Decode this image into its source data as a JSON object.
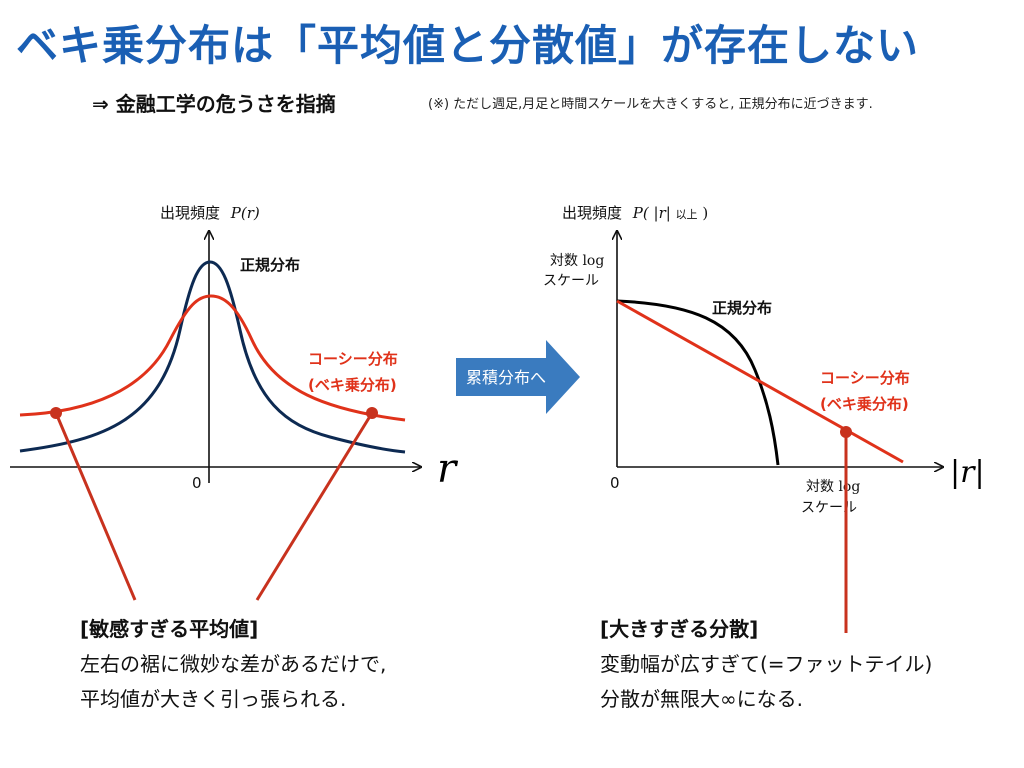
{
  "title": "ベキ乗分布は「平均値と分散値」が存在しない",
  "subtitle": "⇒ 金融工学の危うさを指摘",
  "note": "(※) ただし週足,月足と時間スケールを大きくすると, 正規分布に近づきます.",
  "left_chart": {
    "ylabel_text": "出現頻度",
    "ylabel_var": "P(r)",
    "xlabel": "r",
    "origin": "0",
    "normal_label": "正規分布",
    "cauchy_label_1": "コーシー分布",
    "cauchy_label_2": "(ベキ乗分布)"
  },
  "right_chart": {
    "ylabel_text": "出現頻度",
    "ylabel_var": "P( |r| ",
    "ylabel_suffix": "以上",
    "ylabel_close": ")",
    "y_scale_1": "対数 log",
    "y_scale_2": "スケール",
    "x_scale_1": "対数 log",
    "x_scale_2": "スケール",
    "xlabel": "|r|",
    "origin": "0",
    "normal_label": "正規分布",
    "cauchy_label_1": "コーシー分布",
    "cauchy_label_2": "(ベキ乗分布)"
  },
  "arrow_label": "累積分布へ",
  "caption_left": {
    "head": "[敏感すぎる平均値]",
    "line1": "左右の裾に微妙な差があるだけで,",
    "line2": "平均値が大きく引っ張られる."
  },
  "caption_right": {
    "head": "[大きすぎる分散]",
    "line1": "変動幅が広すぎて(=ファットテイル)",
    "line2": "分散が無限大∞になる."
  },
  "colors": {
    "title": "#1a5fb4",
    "normal_curve": "#0d2a52",
    "cauchy_curve": "#e0321a",
    "pointer": "#c8321e",
    "arrow": "#3a7bbf",
    "black_curve": "#000000"
  },
  "chart_data": [
    {
      "type": "line",
      "series": [
        {
          "name": "正規分布",
          "curve": "bell-narrow"
        },
        {
          "name": "コーシー分布 (ベキ乗分布)",
          "curve": "bell-heavy-tail"
        }
      ],
      "xlabel": "r",
      "ylabel": "出現頻度 P(r)"
    },
    {
      "type": "line",
      "y_scale": "log",
      "x_scale": "log",
      "series": [
        {
          "name": "正規分布",
          "curve": "concave-drop"
        },
        {
          "name": "コーシー分布 (ベキ乗分布)",
          "curve": "straight-line"
        }
      ],
      "xlabel": "|r|",
      "ylabel": "出現頻度 P( |r| 以上)"
    }
  ]
}
